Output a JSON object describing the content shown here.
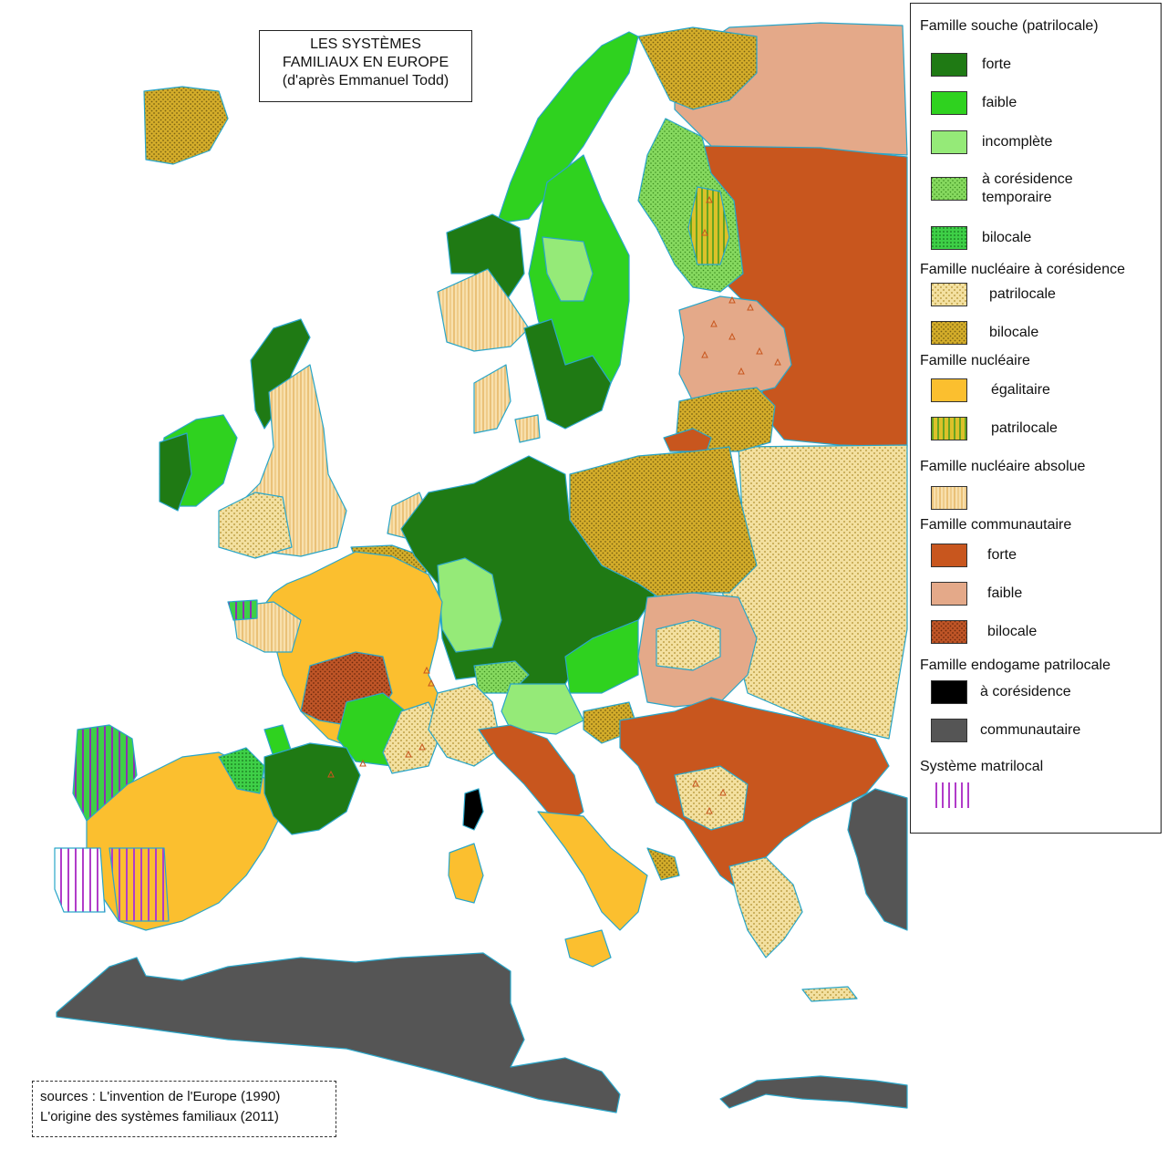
{
  "title": {
    "line1": "LES SYSTÈMES",
    "line2": "FAMILIAUX EN EUROPE",
    "line3": "(d'après Emmanuel Todd)"
  },
  "sources": {
    "line1": "sources : L'invention de l'Europe (1990)",
    "line2": "L'origine des systèmes familiaux (2011)"
  },
  "legend": {
    "g1": "Famille souche (patrilocale)",
    "g1_forte": "forte",
    "g1_faible": "faible",
    "g1_incomplete": "incomplète",
    "g1_cores_1": "à corésidence",
    "g1_cores_2": "temporaire",
    "g1_bilocale": "bilocale",
    "g2": "Famille nucléaire à corésidence",
    "g2_patrilocale": "patrilocale",
    "g2_bilocale": "bilocale",
    "g3": "Famille nucléaire",
    "g3_egalitaire": "égalitaire",
    "g3_patrilocale": "patrilocale",
    "g4": "Famille nucléaire absolue",
    "g5": "Famille communautaire",
    "g5_forte": "forte",
    "g5_faible": "faible",
    "g5_bilocale": "bilocale",
    "g6": "Famille endogame patrilocale",
    "g6_cores": "à corésidence",
    "g6_comm": "communautaire",
    "g7": "Système matrilocal"
  },
  "colors": {
    "souche_forte": "#1f7a14",
    "souche_faible": "#2fd21f",
    "souche_incomplete": "#95ea78",
    "souche_temporaire": "#7ed35c",
    "souche_bilocale": "#3ecf47",
    "nuc_cores_patri": "#f3e0a0",
    "nuc_cores_bilo": "#d4ad2a",
    "nuc_egalitaire": "#fbbf2f",
    "nuc_patrilocale": "#9bc324",
    "nuc_absolue": "#f7dca6",
    "comm_forte": "#c8561e",
    "comm_faible": "#e4a989",
    "comm_bilocale": "#bf5527",
    "endo_cores": "#000000",
    "endo_comm": "#555555",
    "matrilocal": "#b13cc9",
    "coast": "#2aa6c9"
  }
}
